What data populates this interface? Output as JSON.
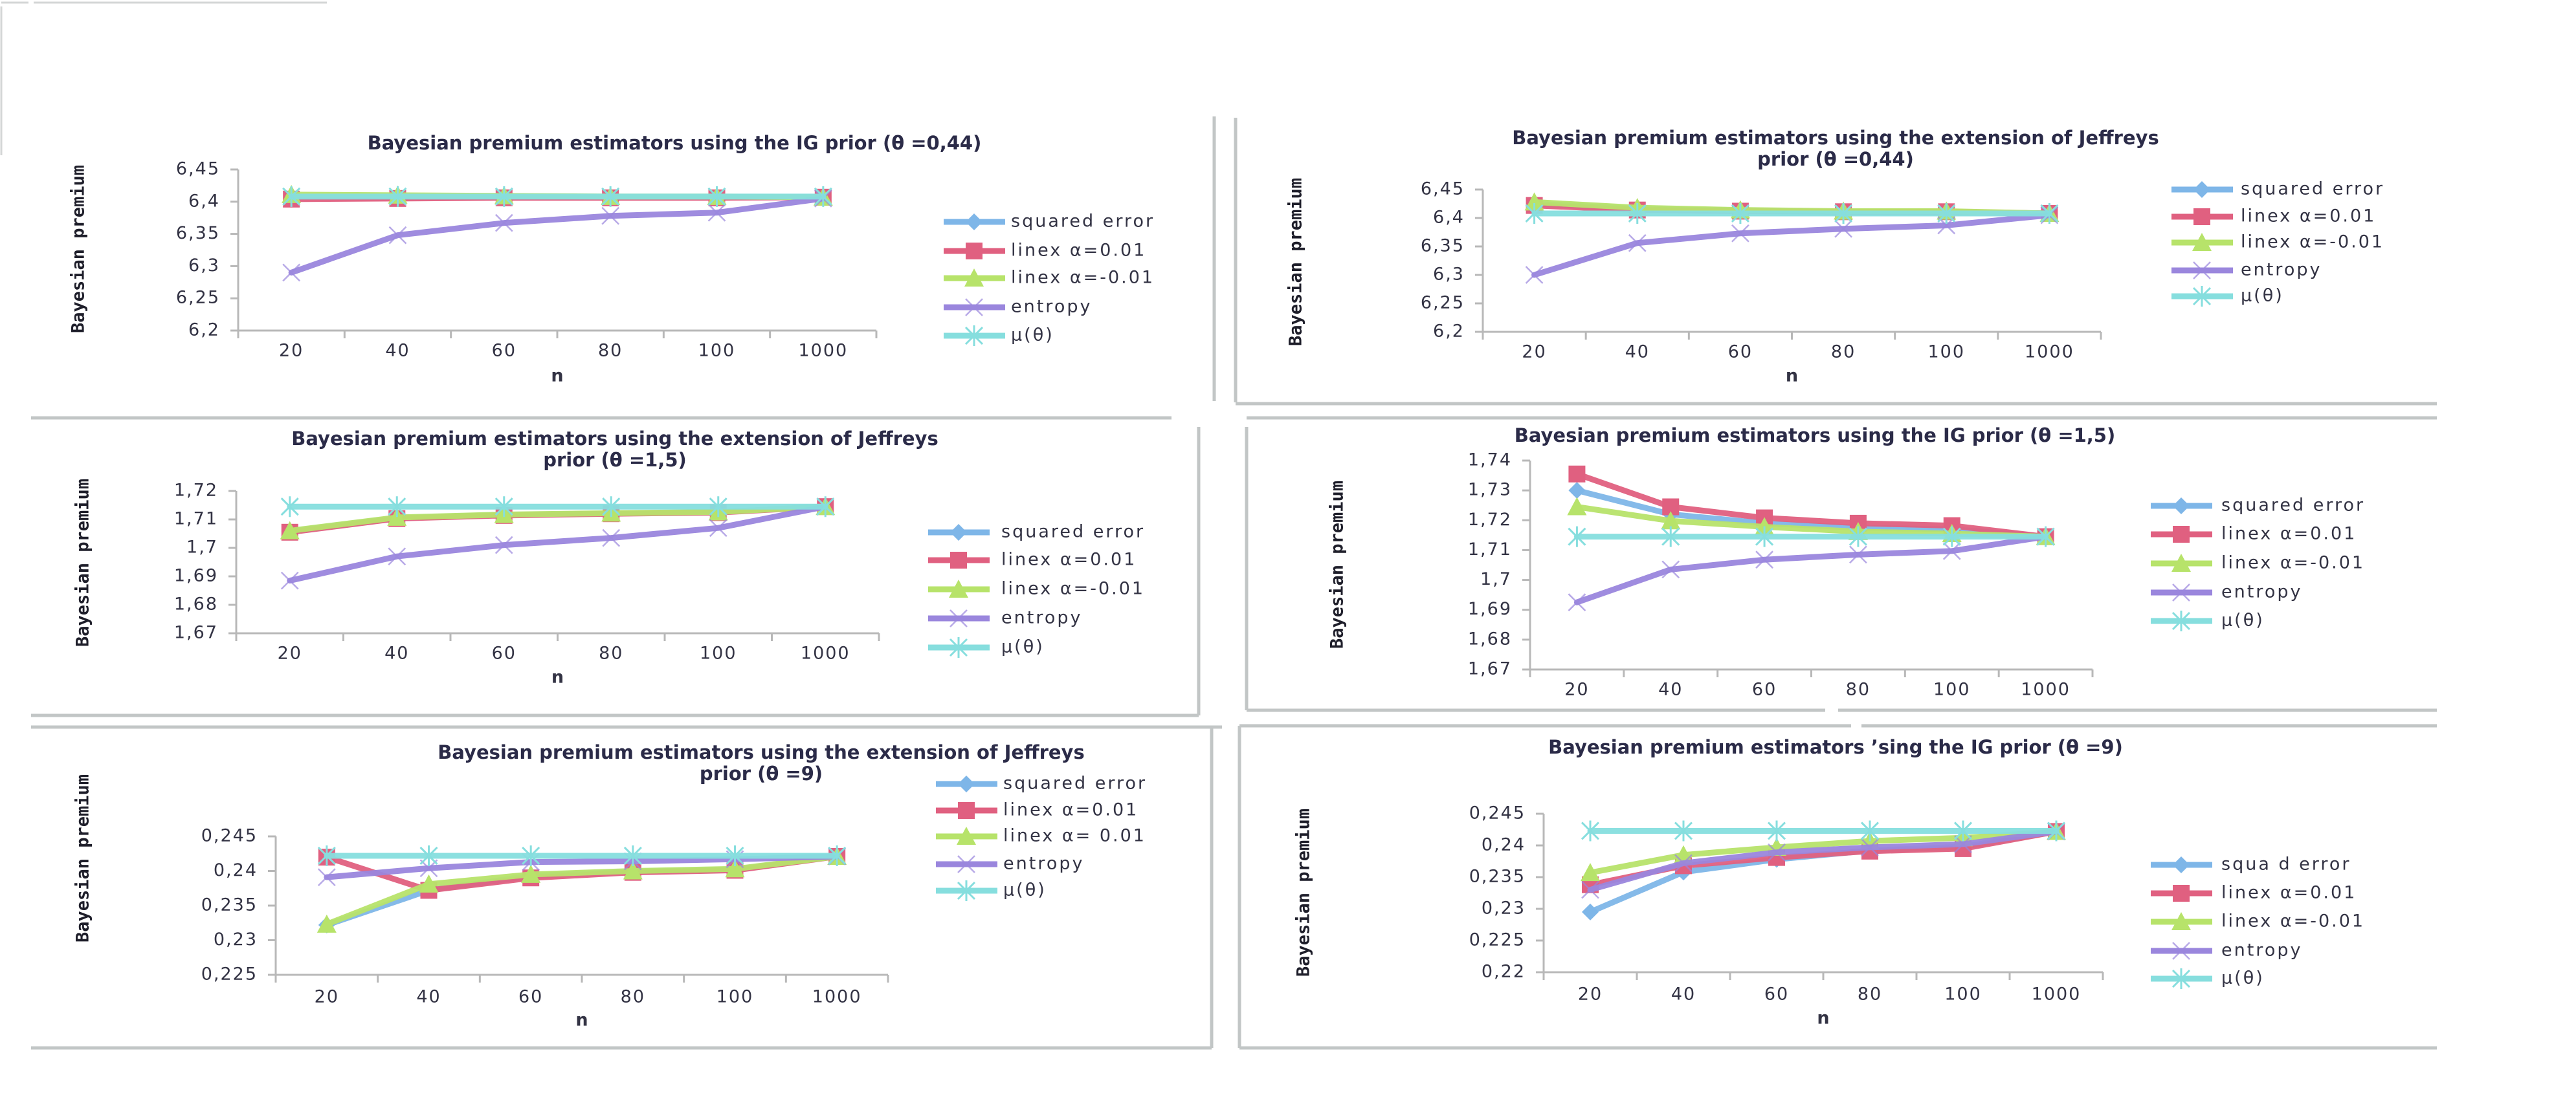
{
  "page": {
    "background": "#ffffff"
  },
  "series_styles": [
    {
      "name": "squared error",
      "color": "#7EB6E8",
      "marker": "diamond"
    },
    {
      "name": "linex α=0.01",
      "color": "#E06080",
      "marker": "square"
    },
    {
      "name": "linex α=-0.01",
      "color": "#B7E36A",
      "marker": "triangle"
    },
    {
      "name": "entropy",
      "color": "#9A86DD",
      "marker": "x"
    },
    {
      "name": "μ(θ)",
      "color": "#86DEDE",
      "marker": "star"
    }
  ],
  "chart_data": [
    {
      "id": "ig-044",
      "type": "line",
      "title": [
        "Bayesian premium estimators using the IG prior (θ =0,44)"
      ],
      "xlabel": "n",
      "ylabel": "Bayesian premium",
      "categories": [
        "20",
        "40",
        "60",
        "80",
        "100",
        "1000"
      ],
      "ylim": [
        6.2,
        6.45
      ],
      "yticks": [
        "6,2",
        "6,25",
        "6,3",
        "6,35",
        "6,4",
        "6,45"
      ],
      "legend": [
        "squared error",
        "linex α=0.01",
        "linex α=-0.01",
        "entropy",
        "μ(θ)"
      ],
      "legend_position": "right",
      "grid": false,
      "series": [
        {
          "name": "squared error",
          "values": [
            6.407,
            6.407,
            6.407,
            6.407,
            6.407,
            6.407
          ]
        },
        {
          "name": "linex α=0.01",
          "values": [
            6.404,
            6.405,
            6.406,
            6.406,
            6.406,
            6.407
          ]
        },
        {
          "name": "linex α=-0.01",
          "values": [
            6.411,
            6.41,
            6.409,
            6.408,
            6.408,
            6.407
          ]
        },
        {
          "name": "entropy",
          "values": [
            6.29,
            6.348,
            6.367,
            6.378,
            6.383,
            6.405
          ]
        },
        {
          "name": "μ(θ)",
          "values": [
            6.408,
            6.408,
            6.408,
            6.408,
            6.408,
            6.408
          ]
        }
      ]
    },
    {
      "id": "jeffreys-044",
      "type": "line",
      "title": [
        "Bayesian premium estimators using the extension of Jeffreys",
        "prior (θ =0,44)"
      ],
      "xlabel": "n",
      "ylabel": "Bayesian premium",
      "categories": [
        "20",
        "40",
        "60",
        "80",
        "100",
        "1000"
      ],
      "ylim": [
        6.2,
        6.45
      ],
      "yticks": [
        "6,2",
        "6,25",
        "6,3",
        "6,35",
        "6,4",
        "6,45"
      ],
      "legend": [
        "squared error",
        "linex α=0.01",
        "linex α=-0.01",
        "entropy",
        "μ(θ)"
      ],
      "legend_position": "right",
      "grid": false,
      "series": [
        {
          "name": "squared error",
          "values": [
            6.425,
            6.416,
            6.413,
            6.411,
            6.411,
            6.408
          ]
        },
        {
          "name": "linex α=0.01",
          "values": [
            6.422,
            6.414,
            6.412,
            6.411,
            6.411,
            6.408
          ]
        },
        {
          "name": "linex α=-0.01",
          "values": [
            6.428,
            6.418,
            6.414,
            6.412,
            6.412,
            6.408
          ]
        },
        {
          "name": "entropy",
          "values": [
            6.3,
            6.356,
            6.373,
            6.381,
            6.387,
            6.405
          ]
        },
        {
          "name": "μ(θ)",
          "values": [
            6.408,
            6.408,
            6.408,
            6.408,
            6.408,
            6.408
          ]
        }
      ]
    },
    {
      "id": "jeffreys-15",
      "type": "line",
      "title": [
        "Bayesian premium estimators using the extension of Jeffreys",
        "prior (θ =1,5)"
      ],
      "xlabel": "n",
      "ylabel": "Bayesian premium",
      "categories": [
        "20",
        "40",
        "60",
        "80",
        "100",
        "1000"
      ],
      "ylim": [
        1.67,
        1.72
      ],
      "yticks": [
        "1,67",
        "1,68",
        "1,69",
        "1,7",
        "1,71",
        "1,72"
      ],
      "legend": [
        "squared error",
        "linex α=0.01",
        "linex α=-0.01",
        "entropy",
        "μ(θ)"
      ],
      "legend_position": "right",
      "grid": false,
      "series": [
        {
          "name": "squared error",
          "values": [
            1.7058,
            1.7105,
            1.7116,
            1.7121,
            1.7125,
            1.7145
          ]
        },
        {
          "name": "linex α=0.01",
          "values": [
            1.7055,
            1.7103,
            1.7114,
            1.712,
            1.7124,
            1.7145
          ]
        },
        {
          "name": "linex α=-0.01",
          "values": [
            1.706,
            1.7107,
            1.7117,
            1.7122,
            1.7126,
            1.7145
          ]
        },
        {
          "name": "entropy",
          "values": [
            1.6885,
            1.697,
            1.701,
            1.7035,
            1.707,
            1.7145
          ]
        },
        {
          "name": "μ(θ)",
          "values": [
            1.7145,
            1.7145,
            1.7145,
            1.7145,
            1.7145,
            1.7145
          ]
        }
      ]
    },
    {
      "id": "ig-15",
      "type": "line",
      "title": [
        "Bayesian premium estimators using the IG prior (θ =1,5)"
      ],
      "xlabel": "n",
      "ylabel": "Bayesian premium",
      "categories": [
        "20",
        "40",
        "60",
        "80",
        "100",
        "1000"
      ],
      "ylim": [
        1.67,
        1.74
      ],
      "yticks": [
        "1,67",
        "1,68",
        "1,69",
        "1,7",
        "1,71",
        "1,72",
        "1,73",
        "1,74"
      ],
      "legend": [
        "squared error",
        "linex α=0.01",
        "linex α=-0.01",
        "entropy",
        "μ(θ)"
      ],
      "legend_position": "right",
      "grid": false,
      "series": [
        {
          "name": "squared error",
          "values": [
            1.73,
            1.722,
            1.719,
            1.7175,
            1.717,
            1.7145
          ]
        },
        {
          "name": "linex α=0.01",
          "values": [
            1.7355,
            1.7245,
            1.7208,
            1.719,
            1.7182,
            1.7145
          ]
        },
        {
          "name": "linex α=-0.01",
          "values": [
            1.7245,
            1.7198,
            1.7178,
            1.7162,
            1.7155,
            1.7145
          ]
        },
        {
          "name": "entropy",
          "values": [
            1.6925,
            1.7035,
            1.7068,
            1.7085,
            1.7097,
            1.7145
          ]
        },
        {
          "name": "μ(θ)",
          "values": [
            1.7145,
            1.7145,
            1.7145,
            1.7145,
            1.7145,
            1.7145
          ]
        }
      ]
    },
    {
      "id": "jeffreys-9",
      "type": "line",
      "title": [
        "Bayesian premium estimators using the extension of Jeffreys",
        "prior (θ =9)"
      ],
      "xlabel": "n",
      "ylabel": "Bayesian premium",
      "categories": [
        "20",
        "40",
        "60",
        "80",
        "100",
        "1000"
      ],
      "ylim": [
        0.225,
        0.245
      ],
      "yticks": [
        "0,225",
        "0,23",
        "0,235",
        "0,24",
        "0,245"
      ],
      "legend": [
        "squared error",
        "linex α=0.01",
        "linex α= 0.01",
        "entropy",
        "μ(θ)"
      ],
      "legend_position": "top-right",
      "grid": false,
      "series": [
        {
          "name": "squared error",
          "values": [
            0.2322,
            0.2372,
            0.2393,
            0.2399,
            0.2402,
            0.2421
          ]
        },
        {
          "name": "linex α=0.01",
          "values": [
            0.242,
            0.2372,
            0.239,
            0.2398,
            0.2401,
            0.2421
          ]
        },
        {
          "name": "linex α=-0.01",
          "values": [
            0.2323,
            0.2381,
            0.2395,
            0.24,
            0.2403,
            0.2421
          ]
        },
        {
          "name": "entropy",
          "values": [
            0.2391,
            0.2404,
            0.2413,
            0.2414,
            0.2417,
            0.2421
          ]
        },
        {
          "name": "μ(θ)",
          "values": [
            0.2422,
            0.2422,
            0.2422,
            0.2422,
            0.2422,
            0.2422
          ]
        }
      ]
    },
    {
      "id": "ig-9",
      "type": "line",
      "title": [
        "Bayesian premium estimators ʼsing the  IG prior (θ =9)"
      ],
      "xlabel": "n",
      "ylabel": "Bayesian premium",
      "categories": [
        "20",
        "40",
        "60",
        "80",
        "100",
        "1000"
      ],
      "ylim": [
        0.22,
        0.245
      ],
      "yticks": [
        "0,22",
        "0,225",
        "0,23",
        "0,235",
        "0,24",
        "0,245"
      ],
      "legend": [
        "squa   d error",
        "linex α=0.01",
        "linex α=-0.01",
        "entropy",
        "μ(θ)"
      ],
      "legend_position": "right",
      "grid": false,
      "series": [
        {
          "name": "squared error",
          "values": [
            0.2295,
            0.2358,
            0.2378,
            0.2392,
            0.2398,
            0.2422
          ]
        },
        {
          "name": "linex α=0.01",
          "values": [
            0.2338,
            0.2368,
            0.2381,
            0.2391,
            0.2395,
            0.2422
          ]
        },
        {
          "name": "linex α=-0.01",
          "values": [
            0.2357,
            0.2385,
            0.2397,
            0.2407,
            0.2412,
            0.2422
          ]
        },
        {
          "name": "entropy",
          "values": [
            0.233,
            0.2372,
            0.2389,
            0.2397,
            0.2402,
            0.2422
          ]
        },
        {
          "name": "μ(θ)",
          "values": [
            0.2423,
            0.2423,
            0.2423,
            0.2423,
            0.2423,
            0.2423
          ]
        }
      ]
    }
  ]
}
